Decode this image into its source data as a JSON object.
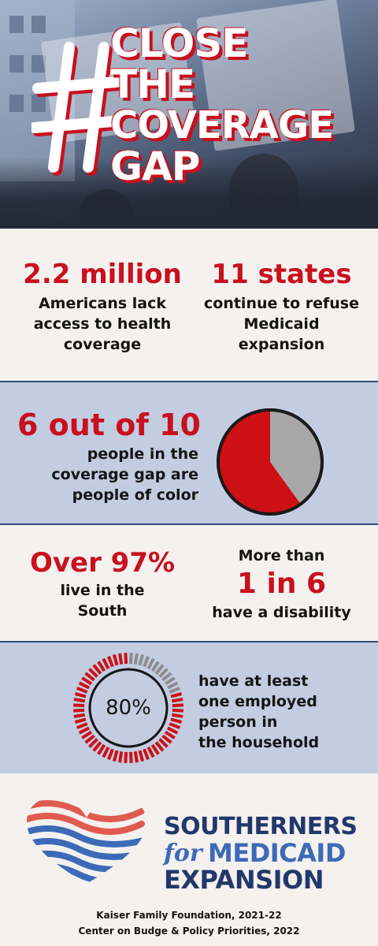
{
  "header": {
    "hashtag": "#",
    "title_lines": [
      "CLOSE",
      "THE",
      "COVERAGE",
      "GAP"
    ]
  },
  "stats_row1": {
    "left": {
      "value": "2.2 million",
      "text": [
        "Americans lack",
        "access to health",
        "coverage"
      ]
    },
    "right": {
      "value": "11 states",
      "text": [
        "continue to refuse",
        "Medicaid",
        "expansion"
      ]
    }
  },
  "stats_row2": {
    "value": "6 out of 10",
    "text": [
      "people in the",
      "coverage gap are",
      "people of color"
    ],
    "pie": {
      "share": 0.6,
      "color_main": "#cc1016",
      "color_rest": "#a8a8a8"
    }
  },
  "stats_row3": {
    "left": {
      "value": "Over 97%",
      "text": [
        "live in the",
        "South"
      ]
    },
    "right": {
      "prefix": "More than",
      "value": "1 in 6",
      "text": [
        "have a disability"
      ]
    }
  },
  "stats_row4": {
    "value": "80%",
    "text": [
      "have at least",
      "one employed",
      "person in",
      "the household"
    ],
    "gauge": {
      "share": 0.8,
      "color_main": "#cc1016",
      "color_rest": "#8c8c8c"
    }
  },
  "logo": {
    "line1": "SOUTHERNERS",
    "for": "for",
    "line2": "MEDICAID",
    "line3": "EXPANSION",
    "colors": {
      "navy": "#22386b",
      "blue": "#3d6ab8",
      "red": "#e05a4f"
    }
  },
  "sources": [
    "Kaiser Family Foundation, 2021-22",
    "Center on Budge & Policy Priorities, 2022"
  ]
}
